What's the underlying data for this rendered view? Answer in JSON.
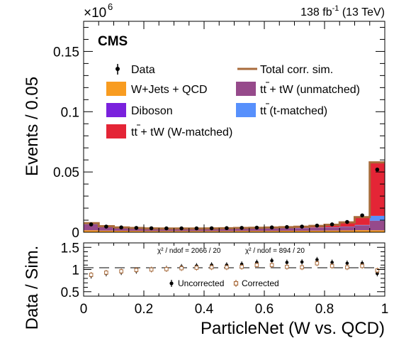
{
  "header": {
    "multiplier_base": "×10",
    "multiplier_exp": "6",
    "lumi_value": "138 fb",
    "lumi_exp": "-1",
    "lumi_energy": " (13 TeV)",
    "cms_label": "CMS"
  },
  "legend": {
    "data": "Data",
    "total": "Total corr. sim.",
    "wjets": "W+Jets + QCD",
    "ttunm_a": "tt",
    "ttunm_b": " + tW (unmatched)",
    "diboson": "Diboson",
    "tttm_a": "tt",
    "tttm_b": " (t-matched)",
    "ttwm_a": "tt",
    "ttwm_b": " + tW (W-matched)"
  },
  "ratio_texts": {
    "chi2_uncorr": "χ² / ndof = 2066 / 20",
    "chi2_corr": "χ² / ndof = 894 / 20",
    "uncorrected": "Uncorrected",
    "corrected": "Corrected"
  },
  "colors": {
    "wjets": "#f89c20",
    "ttunm": "#964a8b",
    "diboson": "#7a21dd",
    "tttm": "#5790fc",
    "ttwm": "#e42536",
    "total": "#a96b3b",
    "corrected": "#a96b3b"
  },
  "chart_data": [
    {
      "type": "bar",
      "stacked": true,
      "ylabel": "Events / 0.05",
      "ylim": [
        0,
        0.175
      ],
      "yticks": [
        "0",
        "0.05",
        "0.1",
        "0.15"
      ],
      "xlim": [
        0,
        1
      ],
      "bin_edges": [
        0,
        0.05,
        0.1,
        0.15,
        0.2,
        0.25,
        0.3,
        0.35,
        0.4,
        0.45,
        0.5,
        0.55,
        0.6,
        0.65,
        0.7,
        0.75,
        0.8,
        0.85,
        0.9,
        0.95,
        1.0
      ],
      "series": [
        {
          "name": "Diboson",
          "values": [
            0.0002,
            0.0001,
            0.0001,
            0.0001,
            0.0001,
            0.0001,
            0.0001,
            0.0001,
            0.0001,
            0.0001,
            0.0001,
            0.0001,
            0.0001,
            0.0001,
            0.0001,
            0.0001,
            0.0001,
            0.0001,
            0.0001,
            0.0002
          ]
        },
        {
          "name": "W+Jets + QCD",
          "values": [
            0.0014,
            0.0012,
            0.0011,
            0.001,
            0.0009,
            0.0009,
            0.0009,
            0.0009,
            0.0009,
            0.0009,
            0.001,
            0.001,
            0.001,
            0.0011,
            0.0011,
            0.0012,
            0.0013,
            0.0014,
            0.0016,
            0.0014
          ]
        },
        {
          "name": "tt + tW (unmatched)",
          "values": [
            0.005,
            0.003,
            0.0022,
            0.0019,
            0.0017,
            0.0016,
            0.0016,
            0.0016,
            0.0017,
            0.0017,
            0.0018,
            0.0019,
            0.002,
            0.0021,
            0.0022,
            0.0024,
            0.0026,
            0.003,
            0.004,
            0.008
          ]
        },
        {
          "name": "tt (t-matched)",
          "values": [
            0.0002,
            0.0002,
            0.0002,
            0.0002,
            0.0002,
            0.0002,
            0.0002,
            0.0002,
            0.0002,
            0.0002,
            0.0002,
            0.0002,
            0.0002,
            0.0002,
            0.0002,
            0.0002,
            0.0002,
            0.0002,
            0.0003,
            0.004
          ]
        },
        {
          "name": "tt + tW (W-matched)",
          "values": [
            0.0002,
            0.0002,
            0.0002,
            0.0002,
            0.0002,
            0.0002,
            0.0002,
            0.0003,
            0.0003,
            0.0004,
            0.0004,
            0.0005,
            0.0006,
            0.0007,
            0.0009,
            0.0012,
            0.0018,
            0.003,
            0.006,
            0.044
          ]
        }
      ],
      "total_corr_sim": [
        0.0075,
        0.005,
        0.004,
        0.0035,
        0.0032,
        0.0031,
        0.0031,
        0.0031,
        0.0032,
        0.0033,
        0.0035,
        0.0037,
        0.0039,
        0.0042,
        0.0046,
        0.0052,
        0.0062,
        0.0082,
        0.0125,
        0.058
      ],
      "data": [
        0.0065,
        0.0047,
        0.004,
        0.0036,
        0.0033,
        0.0032,
        0.0032,
        0.0032,
        0.0033,
        0.0034,
        0.0036,
        0.0038,
        0.004,
        0.0043,
        0.0047,
        0.0055,
        0.0065,
        0.0085,
        0.014,
        0.052
      ]
    },
    {
      "type": "scatter",
      "ylabel": "Data / Sim.",
      "xlabel": "ParticleNet (W vs. QCD)",
      "xlim": [
        0,
        1
      ],
      "ylim": [
        0.4,
        1.6
      ],
      "yticks": [
        "0.5",
        "1",
        "1.5"
      ],
      "xticks": [
        "0",
        "0.2",
        "0.4",
        "0.6",
        "0.8",
        "1"
      ],
      "x": [
        0.025,
        0.075,
        0.125,
        0.175,
        0.225,
        0.275,
        0.325,
        0.375,
        0.425,
        0.475,
        0.525,
        0.575,
        0.625,
        0.675,
        0.725,
        0.775,
        0.825,
        0.875,
        0.925,
        0.975
      ],
      "series": [
        {
          "name": "Uncorrected",
          "values": [
            0.86,
            0.91,
            0.94,
            0.97,
            1.0,
            1.02,
            1.06,
            1.08,
            1.1,
            1.1,
            1.12,
            1.16,
            1.2,
            1.16,
            1.17,
            1.22,
            1.16,
            1.14,
            1.14,
            0.91
          ]
        },
        {
          "name": "Corrected",
          "values": [
            0.88,
            0.93,
            0.96,
            0.99,
            1.0,
            1.01,
            1.03,
            1.04,
            1.05,
            1.05,
            1.06,
            1.1,
            1.1,
            1.06,
            1.05,
            1.14,
            1.08,
            1.05,
            1.08,
            0.98
          ]
        }
      ]
    }
  ]
}
